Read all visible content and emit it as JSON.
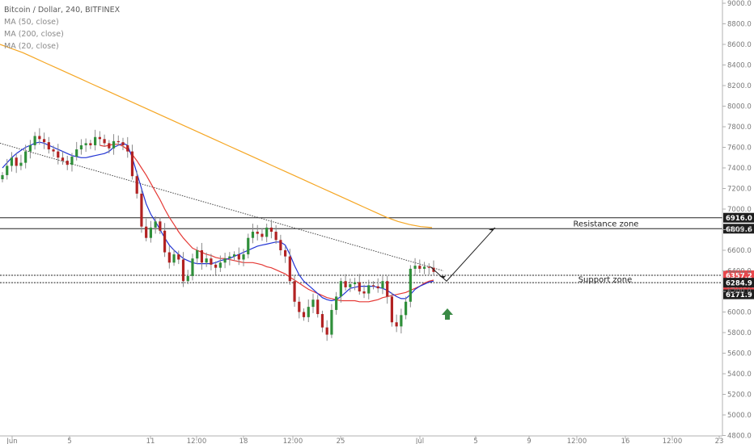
{
  "legend": {
    "symbol": "Bitcoin / Dollar, 240, BITFINEX",
    "ma50": "MA (50, close)",
    "ma200": "MA (200, close)",
    "ma20": "MA (20, close)"
  },
  "chart_data": {
    "type": "candlestick",
    "title": "Bitcoin / Dollar, 240, BITFINEX",
    "x_tick_labels": [
      "Jun",
      "5",
      "11",
      "12:00",
      "18",
      "12:00",
      "25",
      "Jul",
      "5",
      "9",
      "12:00",
      "16",
      "12:00",
      "23"
    ],
    "y_tick_labels": [
      "9000.0",
      "8800.0",
      "8600.0",
      "8400.0",
      "8200.0",
      "8000.0",
      "7800.0",
      "7600.0",
      "7400.0",
      "7200.0",
      "7000.0",
      "6800.0",
      "6600.0",
      "6400.0",
      "6200.0",
      "6000.0",
      "5800.0",
      "5600.0",
      "5400.0",
      "5200.0",
      "5000.0",
      "4800.0"
    ],
    "ylim": [
      4800,
      9000
    ],
    "price_labels": [
      {
        "text": "6916.0",
        "value": 6916.0,
        "style": "dark"
      },
      {
        "text": "6809.6",
        "value": 6809.6,
        "style": "dark"
      },
      {
        "text": "6357.2",
        "value": 6357.2,
        "style": "red"
      },
      {
        "text": "02:45:03",
        "value": 6260,
        "style": "red"
      },
      {
        "text": "6284.9",
        "value": 6284.9,
        "style": "dark"
      },
      {
        "text": "6171.9",
        "value": 6171.9,
        "style": "dark"
      }
    ],
    "zones": [
      {
        "name": "Resistance zone",
        "top": 6916.0,
        "bottom": 6809.6
      },
      {
        "name": "Support zone",
        "top": 6357.2,
        "bottom": 6284.9
      }
    ],
    "close_series": [
      7330,
      7420,
      7500,
      7420,
      7450,
      7560,
      7620,
      7710,
      7680,
      7650,
      7580,
      7560,
      7500,
      7470,
      7430,
      7510,
      7580,
      7620,
      7640,
      7620,
      7700,
      7680,
      7640,
      7590,
      7660,
      7650,
      7620,
      7560,
      7320,
      7150,
      6830,
      6720,
      6820,
      6880,
      6790,
      6580,
      6480,
      6560,
      6510,
      6300,
      6350,
      6520,
      6600,
      6480,
      6520,
      6460,
      6430,
      6480,
      6520,
      6540,
      6560,
      6510,
      6560,
      6720,
      6780,
      6760,
      6730,
      6820,
      6780,
      6700,
      6600,
      6540,
      6300,
      6100,
      6000,
      5950,
      6050,
      6120,
      5980,
      5850,
      5780,
      6020,
      6150,
      6300,
      6240,
      6270,
      6290,
      6200,
      6180,
      6260,
      6250,
      6230,
      6300,
      6150,
      5900,
      5860,
      5970,
      6100,
      6420,
      6450,
      6420,
      6440,
      6430,
      6390
    ],
    "ma20_series": [
      7400,
      7450,
      7500,
      7540,
      7570,
      7600,
      7620,
      7640,
      7650,
      7640,
      7620,
      7600,
      7580,
      7560,
      7540,
      7520,
      7510,
      7500,
      7500,
      7510,
      7520,
      7530,
      7540,
      7560,
      7600,
      7620,
      7640,
      7620,
      7500,
      7350,
      7200,
      7050,
      6950,
      6880,
      6800,
      6720,
      6650,
      6600,
      6560,
      6520,
      6500,
      6480,
      6470,
      6470,
      6470,
      6470,
      6480,
      6500,
      6510,
      6520,
      6540,
      6560,
      6580,
      6600,
      6620,
      6640,
      6650,
      6660,
      6670,
      6680,
      6680,
      6650,
      6560,
      6450,
      6360,
      6300,
      6260,
      6220,
      6180,
      6140,
      6120,
      6110,
      6120,
      6150,
      6190,
      6230,
      6240,
      6250,
      6250,
      6250,
      6250,
      6240,
      6230,
      6210,
      6180,
      6150,
      6130,
      6130,
      6170,
      6220,
      6250,
      6270,
      6290,
      6300
    ],
    "ma50_series": [
      null,
      null,
      null,
      null,
      null,
      null,
      null,
      null,
      null,
      null,
      null,
      null,
      null,
      null,
      null,
      null,
      null,
      null,
      null,
      null,
      null,
      7620,
      7610,
      7620,
      7630,
      7630,
      7610,
      7580,
      7530,
      7470,
      7400,
      7330,
      7250,
      7170,
      7090,
      7000,
      6920,
      6850,
      6780,
      6720,
      6670,
      6620,
      6600,
      6580,
      6560,
      6550,
      6530,
      6520,
      6520,
      6510,
      6500,
      6490,
      6480,
      6480,
      6480,
      6470,
      6460,
      6440,
      6430,
      6410,
      6390,
      6370,
      6340,
      6310,
      6280,
      6250,
      6220,
      6200,
      6180,
      6160,
      6140,
      6130,
      6120,
      6110,
      6110,
      6110,
      6110,
      6100,
      6100,
      6100,
      6110,
      6120,
      6140,
      6150,
      6160,
      6170,
      6180,
      6190,
      6210,
      6230,
      6250,
      6280,
      6300,
      6310
    ],
    "ma200_series": [
      8600,
      8560,
      8520,
      8470,
      8420,
      8370,
      8320,
      8270,
      8220,
      8170,
      8120,
      8070,
      8020,
      7970,
      7920,
      7870,
      7820,
      7770,
      7720,
      7670,
      7620,
      7570,
      7520,
      7470,
      7420,
      7370,
      7320,
      7270,
      7220,
      7170,
      7120,
      7070,
      7020,
      6970,
      6920,
      6880,
      6850,
      6830,
      6820
    ],
    "annotations": [
      "Resistance zone",
      "Support zone"
    ]
  }
}
